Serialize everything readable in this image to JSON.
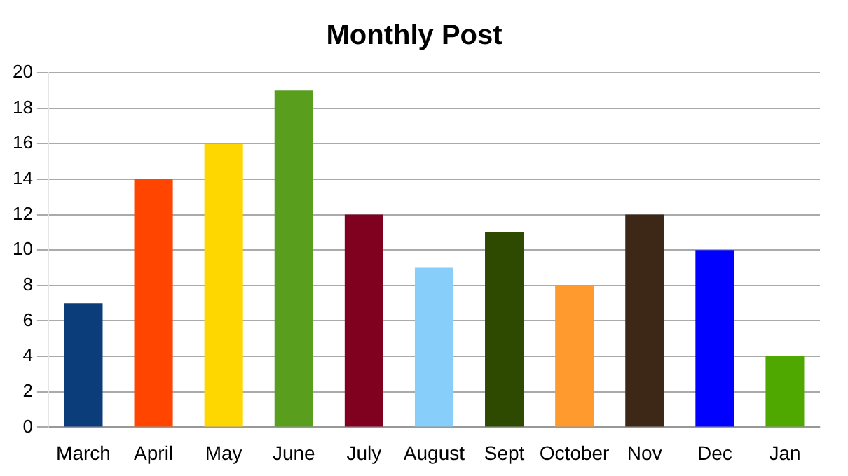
{
  "chart_data": {
    "type": "bar",
    "title": "Monthly Post",
    "categories": [
      "March",
      "April",
      "May",
      "June",
      "July",
      "August",
      "Sept",
      "October",
      "Nov",
      "Dec",
      "Jan"
    ],
    "values": [
      7,
      14,
      16,
      19,
      12,
      9,
      11,
      8,
      12,
      10,
      4
    ],
    "colors": [
      "#0a3d7a",
      "#ff4500",
      "#ffd700",
      "#5a9e1e",
      "#800020",
      "#87cefa",
      "#2d4a00",
      "#ff9a2e",
      "#3d2817",
      "#0000ff",
      "#4ea800"
    ],
    "ylim": [
      0,
      20
    ],
    "yticks": [
      0,
      2,
      4,
      6,
      8,
      10,
      12,
      14,
      16,
      18,
      20
    ],
    "grid": "y",
    "legend": false
  }
}
